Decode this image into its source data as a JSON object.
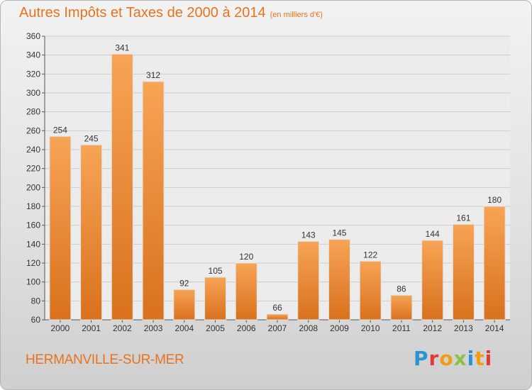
{
  "header": {
    "title": "Autres Impôts et Taxes de 2000 à 2014",
    "unit": "(en milliers d'€)"
  },
  "footer": {
    "commune": "HERMANVILLE-SUR-MER",
    "logo": "Proxiti"
  },
  "colors": {
    "accent": "#e8731f",
    "bar_top": "#f7a455",
    "bar_bottom": "#d9711d"
  },
  "chart_data": {
    "type": "bar",
    "title": "Autres Impôts et Taxes de 2000 à 2014",
    "subtitle": "(en milliers d'€)",
    "categories": [
      "2000",
      "2001",
      "2002",
      "2003",
      "2004",
      "2005",
      "2006",
      "2007",
      "2008",
      "2009",
      "2010",
      "2011",
      "2012",
      "2013",
      "2014"
    ],
    "values": [
      254,
      245,
      341,
      312,
      92,
      105,
      120,
      66,
      143,
      145,
      122,
      86,
      144,
      161,
      180
    ],
    "ylim": [
      60,
      360
    ],
    "yticks": [
      60,
      80,
      100,
      120,
      140,
      160,
      180,
      200,
      220,
      240,
      260,
      280,
      300,
      320,
      340,
      360
    ],
    "grid": true,
    "legend": "none"
  }
}
